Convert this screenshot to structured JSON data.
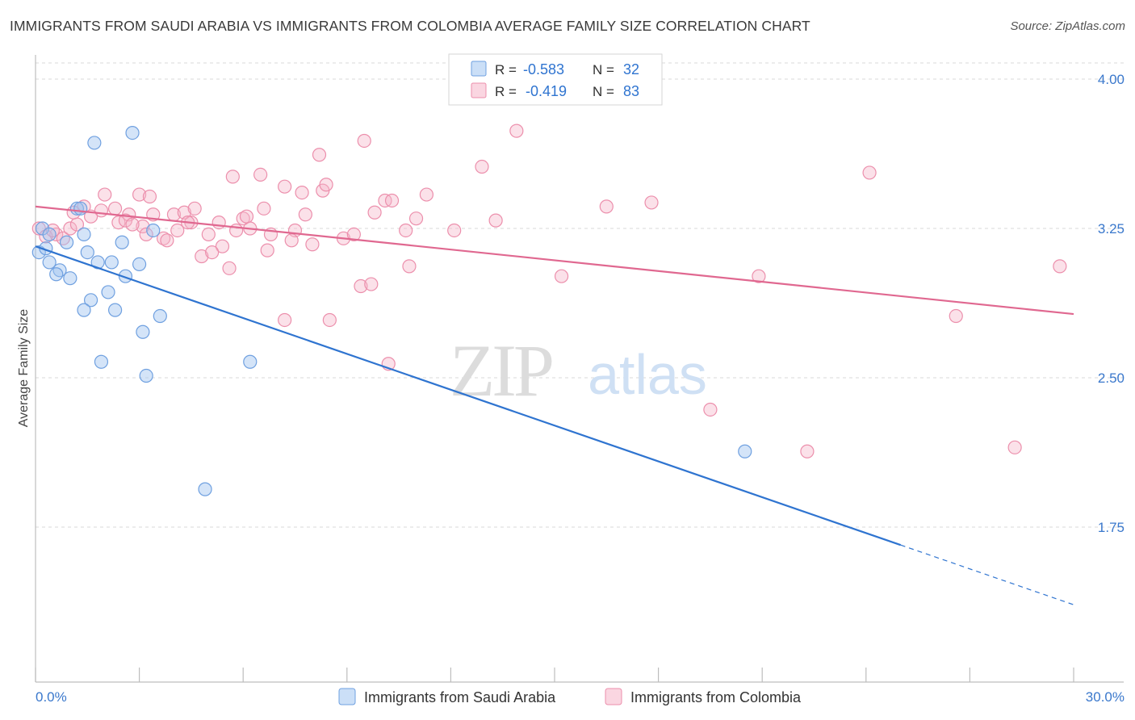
{
  "title": "IMMIGRANTS FROM SAUDI ARABIA VS IMMIGRANTS FROM COLOMBIA AVERAGE FAMILY SIZE CORRELATION CHART",
  "source": "Source: ZipAtlas.com",
  "watermark": {
    "zip": "ZIP",
    "atlas": "atlas"
  },
  "colors": {
    "saudi": "#6fa0e0",
    "saudi_fill": "rgba(160,196,240,0.45)",
    "saudi_line": "#2f74d0",
    "colombia": "#ec8fac",
    "colombia_fill": "rgba(246,180,201,0.40)",
    "colombia_line": "#e06890",
    "tick_label": "#3a78cc",
    "grid": "#d9d9d9"
  },
  "legend": {
    "rows": [
      {
        "r_label": "R =",
        "r_value": "-0.583",
        "n_label": "N =",
        "n_value": "32"
      },
      {
        "r_label": "R =",
        "r_value": "-0.419",
        "n_label": "N =",
        "n_value": "83"
      }
    ]
  },
  "chart_data": {
    "type": "scatter",
    "title": "IMMIGRANTS FROM SAUDI ARABIA VS IMMIGRANTS FROM COLOMBIA AVERAGE FAMILY SIZE CORRELATION CHART",
    "xlabel": "",
    "ylabel": "Average Family Size",
    "xlim": [
      0,
      30
    ],
    "ylim": [
      1.0,
      4.05
    ],
    "x_tick_labels": [
      "0.0%",
      "30.0%"
    ],
    "y_ticks": [
      1.75,
      2.5,
      3.25,
      4.0
    ],
    "y_tick_labels": [
      "1.75",
      "2.50",
      "3.25",
      "4.00"
    ],
    "grid": true,
    "legend_position": "bottom-center",
    "series": [
      {
        "name": "Immigrants from Saudi Arabia",
        "points": [
          [
            1.7,
            3.68
          ],
          [
            2.8,
            3.73
          ],
          [
            1.2,
            3.35
          ],
          [
            1.3,
            3.35
          ],
          [
            0.2,
            3.25
          ],
          [
            0.4,
            3.22
          ],
          [
            0.1,
            3.13
          ],
          [
            0.3,
            3.15
          ],
          [
            0.9,
            3.18
          ],
          [
            1.4,
            3.22
          ],
          [
            2.5,
            3.18
          ],
          [
            3.4,
            3.24
          ],
          [
            0.4,
            3.08
          ],
          [
            0.7,
            3.04
          ],
          [
            0.6,
            3.02
          ],
          [
            1.0,
            3.0
          ],
          [
            1.5,
            3.13
          ],
          [
            1.8,
            3.08
          ],
          [
            2.2,
            3.08
          ],
          [
            3.0,
            3.07
          ],
          [
            2.6,
            3.01
          ],
          [
            2.1,
            2.93
          ],
          [
            1.6,
            2.89
          ],
          [
            1.4,
            2.84
          ],
          [
            2.3,
            2.84
          ],
          [
            3.6,
            2.81
          ],
          [
            3.1,
            2.73
          ],
          [
            1.9,
            2.58
          ],
          [
            3.2,
            2.51
          ],
          [
            6.2,
            2.58
          ],
          [
            4.9,
            1.94
          ],
          [
            20.5,
            2.13
          ]
        ]
      },
      {
        "name": "Immigrants from Colombia",
        "points": [
          [
            0.1,
            3.25
          ],
          [
            0.6,
            3.22
          ],
          [
            0.8,
            3.2
          ],
          [
            1.0,
            3.25
          ],
          [
            1.4,
            3.36
          ],
          [
            1.9,
            3.34
          ],
          [
            2.0,
            3.42
          ],
          [
            2.3,
            3.35
          ],
          [
            2.4,
            3.28
          ],
          [
            2.7,
            3.32
          ],
          [
            3.0,
            3.42
          ],
          [
            3.1,
            3.26
          ],
          [
            3.2,
            3.22
          ],
          [
            3.3,
            3.41
          ],
          [
            3.4,
            3.32
          ],
          [
            3.7,
            3.2
          ],
          [
            4.0,
            3.32
          ],
          [
            4.1,
            3.24
          ],
          [
            4.3,
            3.33
          ],
          [
            4.5,
            3.28
          ],
          [
            4.6,
            3.35
          ],
          [
            4.8,
            3.11
          ],
          [
            5.0,
            3.22
          ],
          [
            5.3,
            3.28
          ],
          [
            5.4,
            3.16
          ],
          [
            5.7,
            3.51
          ],
          [
            5.8,
            3.24
          ],
          [
            6.0,
            3.3
          ],
          [
            6.2,
            3.25
          ],
          [
            6.5,
            3.52
          ],
          [
            6.6,
            3.35
          ],
          [
            6.7,
            3.14
          ],
          [
            6.8,
            3.22
          ],
          [
            7.2,
            3.46
          ],
          [
            7.5,
            3.24
          ],
          [
            7.7,
            3.43
          ],
          [
            7.8,
            3.32
          ],
          [
            8.0,
            3.17
          ],
          [
            8.2,
            3.62
          ],
          [
            8.3,
            3.44
          ],
          [
            8.4,
            3.47
          ],
          [
            8.9,
            3.2
          ],
          [
            9.2,
            3.22
          ],
          [
            9.4,
            2.96
          ],
          [
            9.5,
            3.69
          ],
          [
            9.7,
            2.97
          ],
          [
            9.8,
            3.33
          ],
          [
            10.1,
            3.39
          ],
          [
            10.3,
            3.39
          ],
          [
            10.7,
            3.24
          ],
          [
            10.8,
            3.06
          ],
          [
            11.0,
            3.3
          ],
          [
            11.3,
            3.42
          ],
          [
            12.1,
            3.24
          ],
          [
            12.9,
            3.56
          ],
          [
            13.3,
            3.29
          ],
          [
            13.9,
            3.74
          ],
          [
            15.2,
            3.01
          ],
          [
            16.5,
            3.36
          ],
          [
            17.8,
            3.38
          ],
          [
            20.9,
            3.01
          ],
          [
            24.1,
            3.53
          ],
          [
            26.6,
            2.81
          ],
          [
            28.3,
            2.15
          ],
          [
            29.6,
            3.06
          ],
          [
            7.2,
            2.79
          ],
          [
            8.5,
            2.79
          ],
          [
            10.2,
            2.57
          ],
          [
            19.5,
            2.34
          ],
          [
            22.3,
            2.13
          ],
          [
            0.3,
            3.21
          ],
          [
            1.2,
            3.27
          ],
          [
            1.6,
            3.31
          ],
          [
            2.6,
            3.29
          ],
          [
            3.8,
            3.19
          ],
          [
            4.4,
            3.28
          ],
          [
            5.1,
            3.13
          ],
          [
            5.6,
            3.05
          ],
          [
            6.1,
            3.31
          ],
          [
            7.4,
            3.19
          ],
          [
            0.5,
            3.24
          ],
          [
            1.1,
            3.33
          ],
          [
            2.8,
            3.27
          ]
        ]
      }
    ],
    "trend_lines": [
      {
        "series": "Immigrants from Saudi Arabia",
        "x": [
          0,
          25
        ],
        "y": [
          3.16,
          1.66
        ],
        "dashed_extension": {
          "x": [
            25,
            30
          ],
          "y": [
            1.66,
            1.36
          ]
        }
      },
      {
        "series": "Immigrants from Colombia",
        "x": [
          0,
          30
        ],
        "y": [
          3.36,
          2.82
        ]
      }
    ]
  }
}
